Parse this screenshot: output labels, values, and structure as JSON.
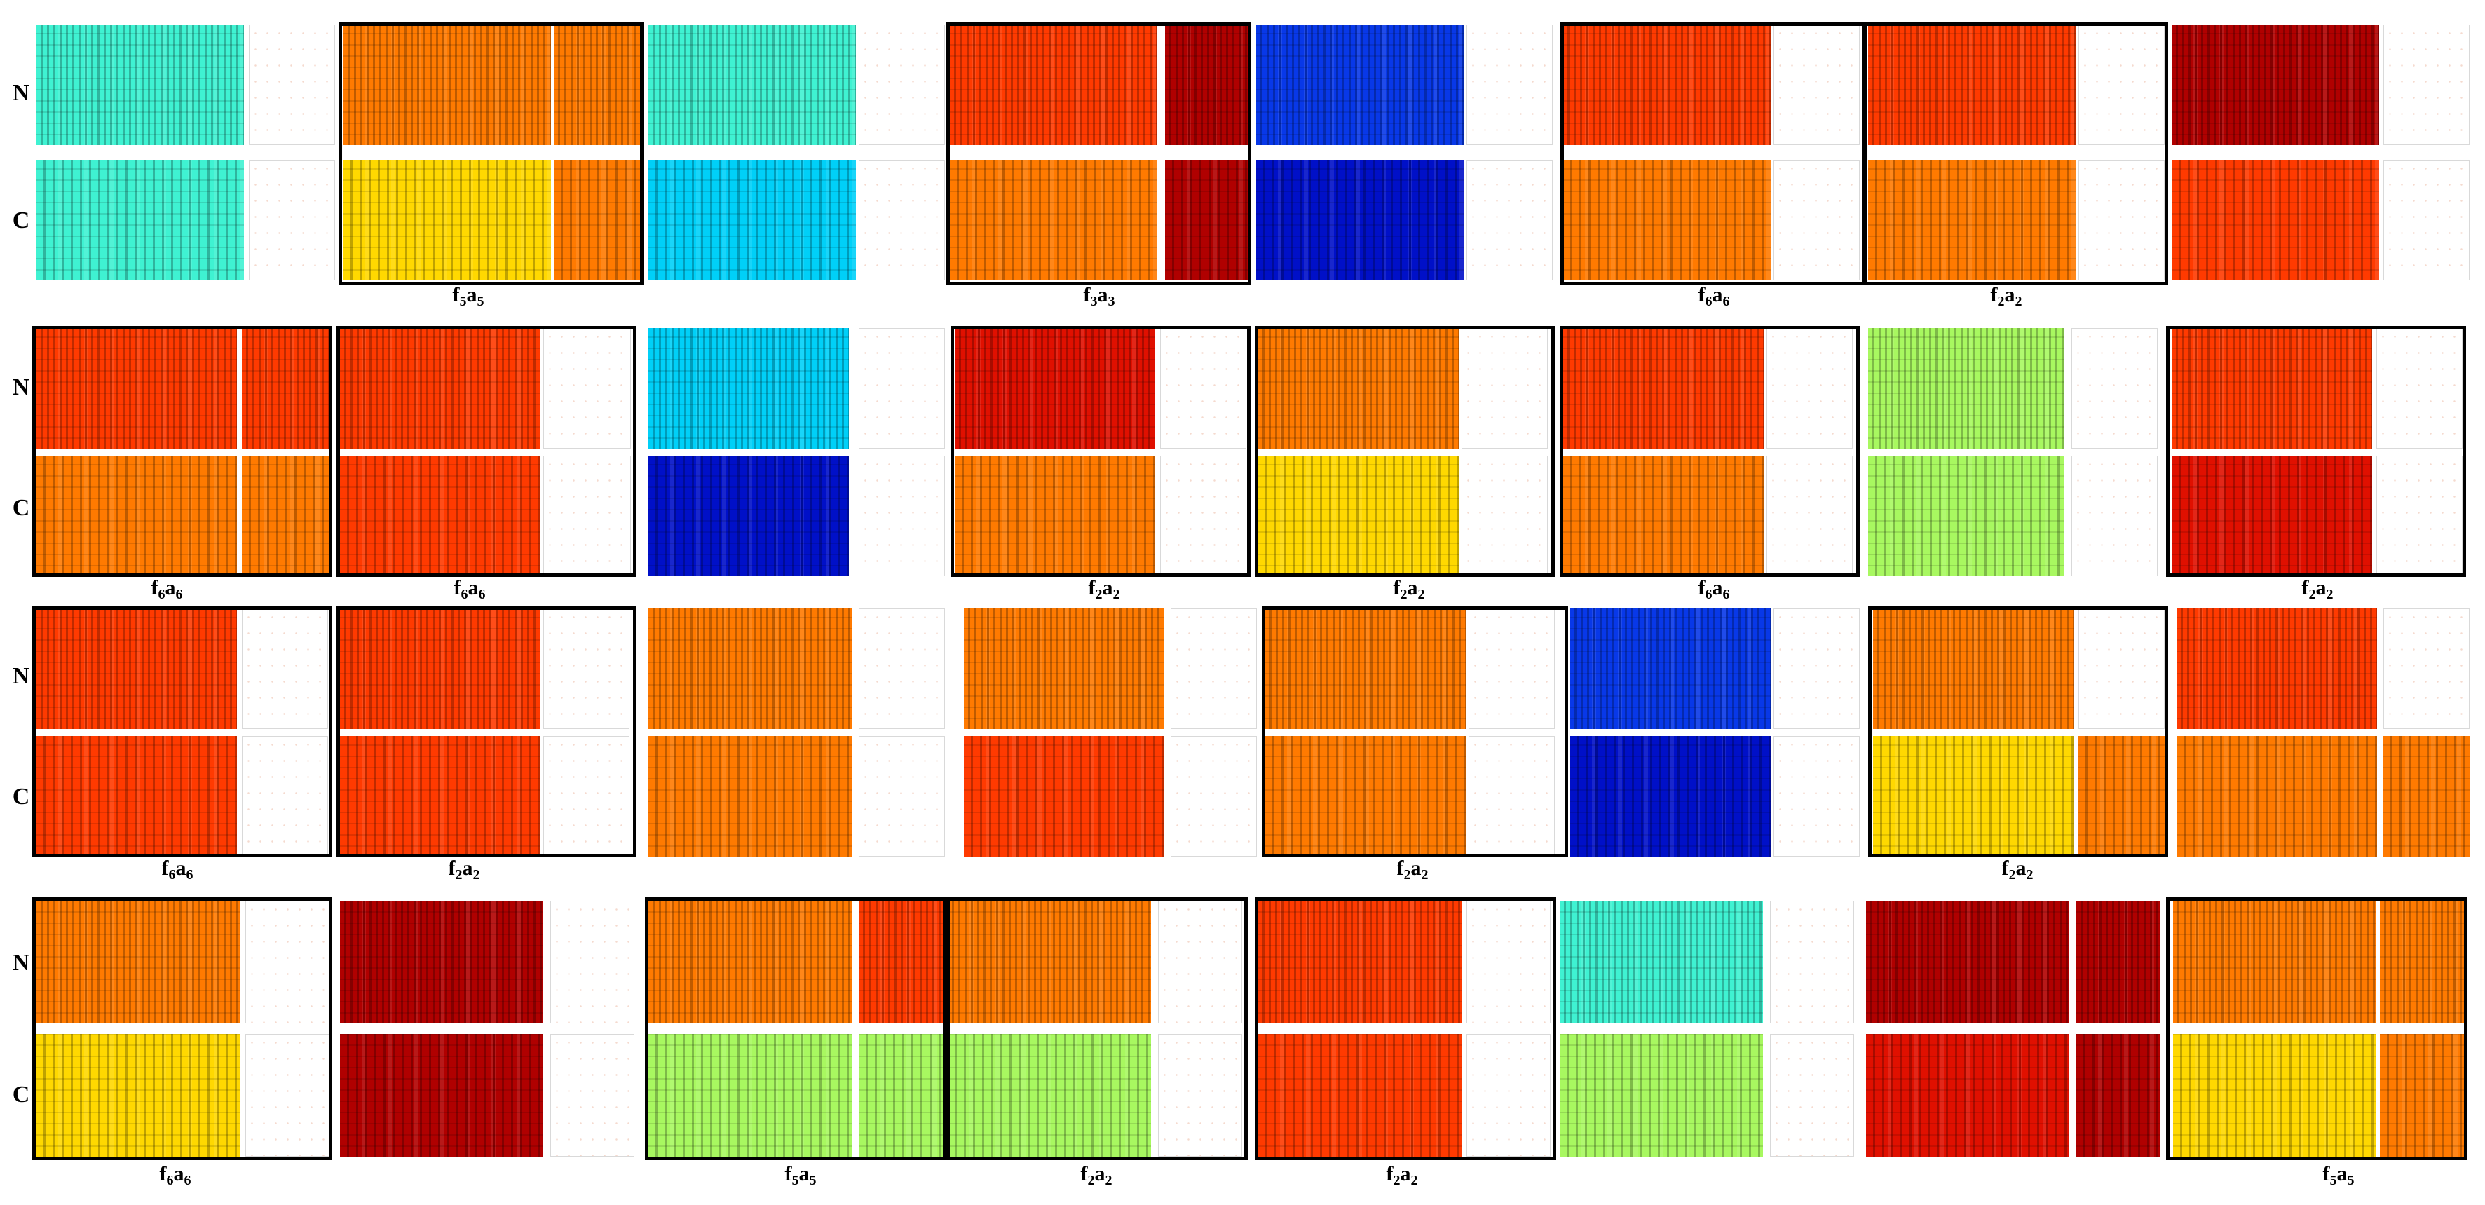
{
  "figure": {
    "row_labels": {
      "noisy": "N",
      "clean": "C"
    },
    "groups": [
      {
        "captions": [
          {
            "id": "g1c1",
            "text": "f5a5",
            "f": "f",
            "fs": "5",
            "a": "a",
            "as": "5"
          },
          {
            "id": "g1c2",
            "text": "f3a3",
            "f": "f",
            "fs": "3",
            "a": "a",
            "as": "3"
          },
          {
            "id": "g1c3",
            "text": "f6a6",
            "f": "f",
            "fs": "6",
            "a": "a",
            "as": "6"
          },
          {
            "id": "g1c4",
            "text": "f2a2",
            "f": "f",
            "fs": "2",
            "a": "a",
            "as": "2"
          }
        ]
      },
      {
        "captions": [
          {
            "id": "g2c1",
            "text": "f6a6",
            "f": "f",
            "fs": "6",
            "a": "a",
            "as": "6"
          },
          {
            "id": "g2c2",
            "text": "f6a6",
            "f": "f",
            "fs": "6",
            "a": "a",
            "as": "6"
          },
          {
            "id": "g2c3",
            "text": "f2a2",
            "f": "f",
            "fs": "2",
            "a": "a",
            "as": "2"
          },
          {
            "id": "g2c4",
            "text": "f2a2",
            "f": "f",
            "fs": "2",
            "a": "a",
            "as": "2"
          },
          {
            "id": "g2c5",
            "text": "f6a6",
            "f": "f",
            "fs": "6",
            "a": "a",
            "as": "6"
          },
          {
            "id": "g2c6",
            "text": "f2a2",
            "f": "f",
            "fs": "2",
            "a": "a",
            "as": "2"
          }
        ]
      },
      {
        "captions": [
          {
            "id": "g3c1",
            "text": "f6a6",
            "f": "f",
            "fs": "6",
            "a": "a",
            "as": "6"
          },
          {
            "id": "g3c2",
            "text": "f2a2",
            "f": "f",
            "fs": "2",
            "a": "a",
            "as": "2"
          },
          {
            "id": "g3c3",
            "text": "f2a2",
            "f": "f",
            "fs": "2",
            "a": "a",
            "as": "2"
          },
          {
            "id": "g3c4",
            "text": "f2a2",
            "f": "f",
            "fs": "2",
            "a": "a",
            "as": "2"
          }
        ]
      },
      {
        "captions": [
          {
            "id": "g4c1",
            "text": "f6a6",
            "f": "f",
            "fs": "6",
            "a": "a",
            "as": "6"
          },
          {
            "id": "g4c2",
            "text": "f5a5",
            "f": "f",
            "fs": "5",
            "a": "a",
            "as": "5"
          },
          {
            "id": "g4c3",
            "text": "f2a2",
            "f": "f",
            "fs": "2",
            "a": "a",
            "as": "2"
          },
          {
            "id": "g4c4",
            "text": "f2a2",
            "f": "f",
            "fs": "2",
            "a": "a",
            "as": "2"
          },
          {
            "id": "g4c5",
            "text": "f5a5",
            "f": "f",
            "fs": "5",
            "a": "a",
            "as": "5"
          }
        ]
      }
    ],
    "colors": {
      "cyan": "#3ff2d2",
      "lightblue": "#00d0f8",
      "blue": "#0838e8",
      "navy": "#0010c8",
      "orange": "#ff7a00",
      "redorange": "#ff3a00",
      "red": "#e01000",
      "darkred": "#b00000",
      "yellow": "#ffd800",
      "lime": "#a8f860",
      "white": "#ffffff"
    }
  }
}
